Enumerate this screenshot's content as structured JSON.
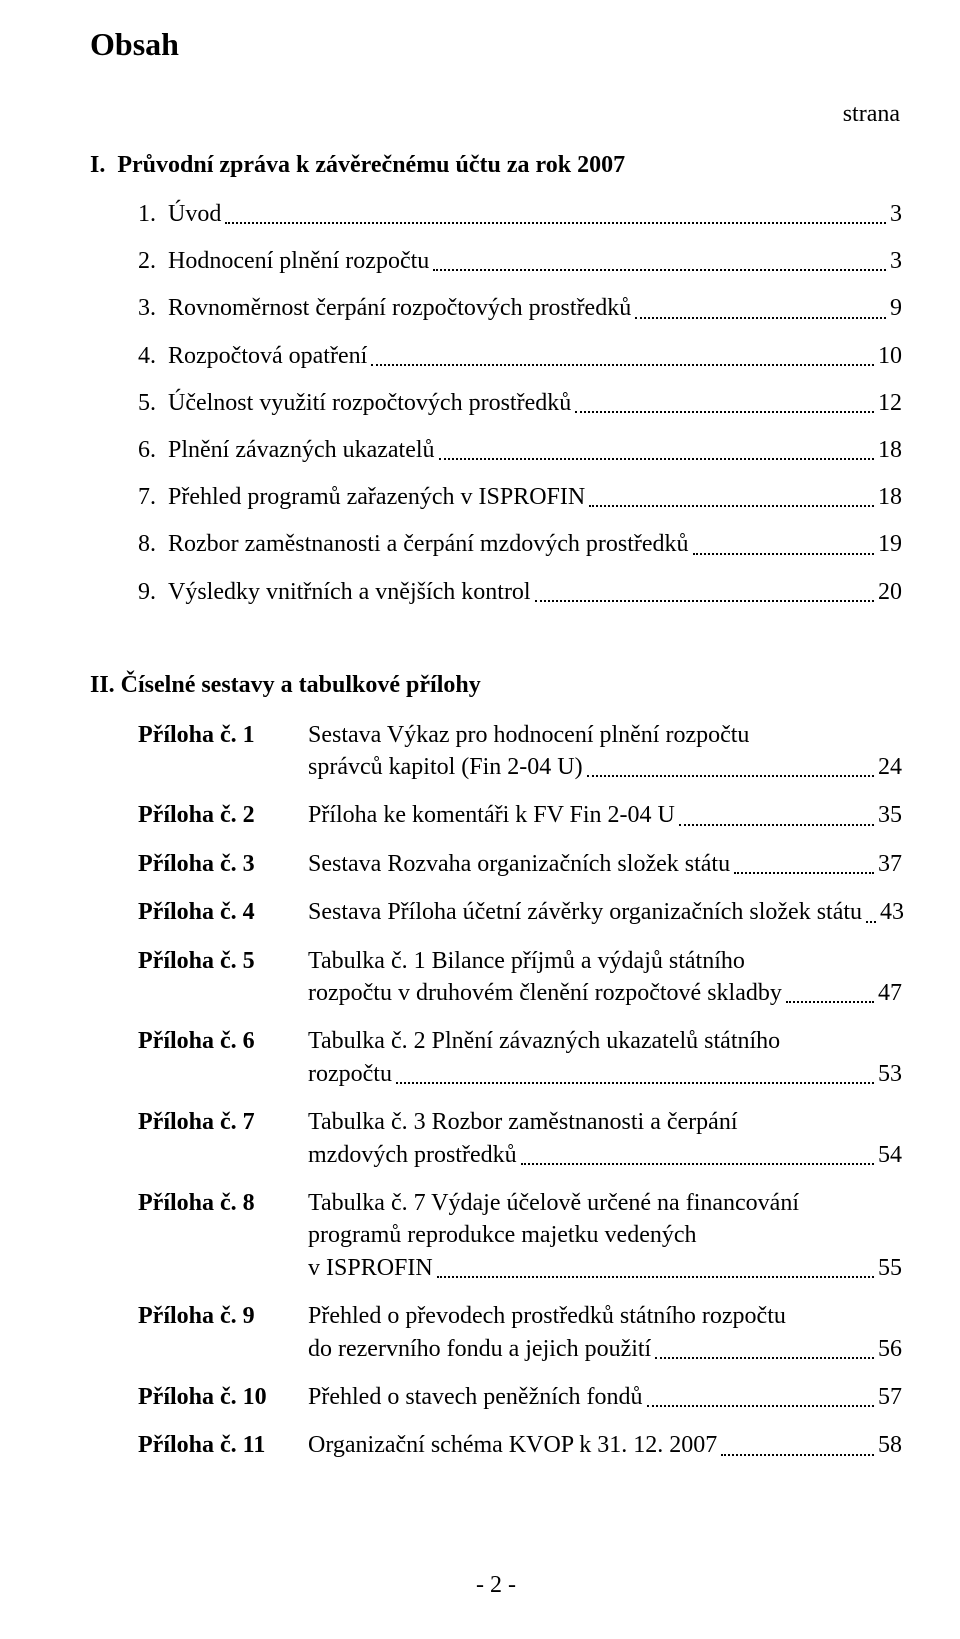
{
  "title": "Obsah",
  "page_label": "strana",
  "section1": {
    "heading": "I.  Průvodní zpráva k závěrečnému účtu za rok 2007",
    "items": [
      {
        "text": "1.  Úvod",
        "page": "3"
      },
      {
        "text": "2.  Hodnocení plnění rozpočtu",
        "page": "3"
      },
      {
        "text": "3.  Rovnoměrnost čerpání rozpočtových prostředků",
        "page": "9"
      },
      {
        "text": "4.  Rozpočtová opatření",
        "page": "10"
      },
      {
        "text": "5.  Účelnost využití rozpočtových prostředků",
        "page": "12"
      },
      {
        "text": "6.  Plnění závazných ukazatelů",
        "page": "18"
      },
      {
        "text": "7.  Přehled programů zařazených v ISPROFIN",
        "page": "18"
      },
      {
        "text": "8.  Rozbor zaměstnanosti a čerpání mzdových prostředků",
        "page": "19"
      },
      {
        "text": "9.  Výsledky vnitřních a vnějších kontrol",
        "page": "20"
      }
    ]
  },
  "section2": {
    "heading": "II. Číselné sestavy a tabulkové přílohy",
    "items": [
      {
        "label": "Příloha č. 1",
        "lines": [
          "Sestava Výkaz pro hodnocení plnění rozpočtu"
        ],
        "last": "správců kapitol (Fin 2-04 U)",
        "page": "24"
      },
      {
        "label": "Příloha č. 2",
        "lines": [],
        "last": "Příloha ke komentáři k FV Fin 2-04 U",
        "page": "35"
      },
      {
        "label": "Příloha č. 3",
        "lines": [],
        "last": "Sestava Rozvaha organizačních složek státu",
        "page": "37"
      },
      {
        "label": "Příloha č. 4",
        "lines": [],
        "last": "Sestava Příloha účetní závěrky organizačních složek státu",
        "page": "43"
      },
      {
        "label": "Příloha č. 5",
        "lines": [
          "Tabulka č. 1 Bilance příjmů a výdajů státního"
        ],
        "last": "rozpočtu v druhovém členění rozpočtové skladby",
        "page": "47"
      },
      {
        "label": "Příloha č. 6",
        "lines": [
          "Tabulka č. 2 Plnění závazných ukazatelů státního"
        ],
        "last": "rozpočtu",
        "page": "53"
      },
      {
        "label": "Příloha č. 7",
        "lines": [
          "Tabulka č. 3 Rozbor zaměstnanosti a čerpání"
        ],
        "last": "mzdových prostředků",
        "page": "54"
      },
      {
        "label": "Příloha č. 8",
        "lines": [
          "Tabulka č. 7 Výdaje účelově určené na financování",
          "programů reprodukce majetku vedených"
        ],
        "last": "v ISPROFIN",
        "page": "55"
      },
      {
        "label": "Příloha č. 9",
        "lines": [
          "Přehled o převodech prostředků státního rozpočtu"
        ],
        "last": "do rezervního fondu a jejich použití",
        "page": "56"
      },
      {
        "label": "Příloha č. 10",
        "lines": [],
        "last": "Přehled o stavech peněžních fondů",
        "page": "57"
      },
      {
        "label": "Příloha č. 11",
        "lines": [],
        "last": "Organizační schéma KVOP k 31. 12. 2007",
        "page": "58"
      }
    ]
  },
  "footer": "- 2 -"
}
